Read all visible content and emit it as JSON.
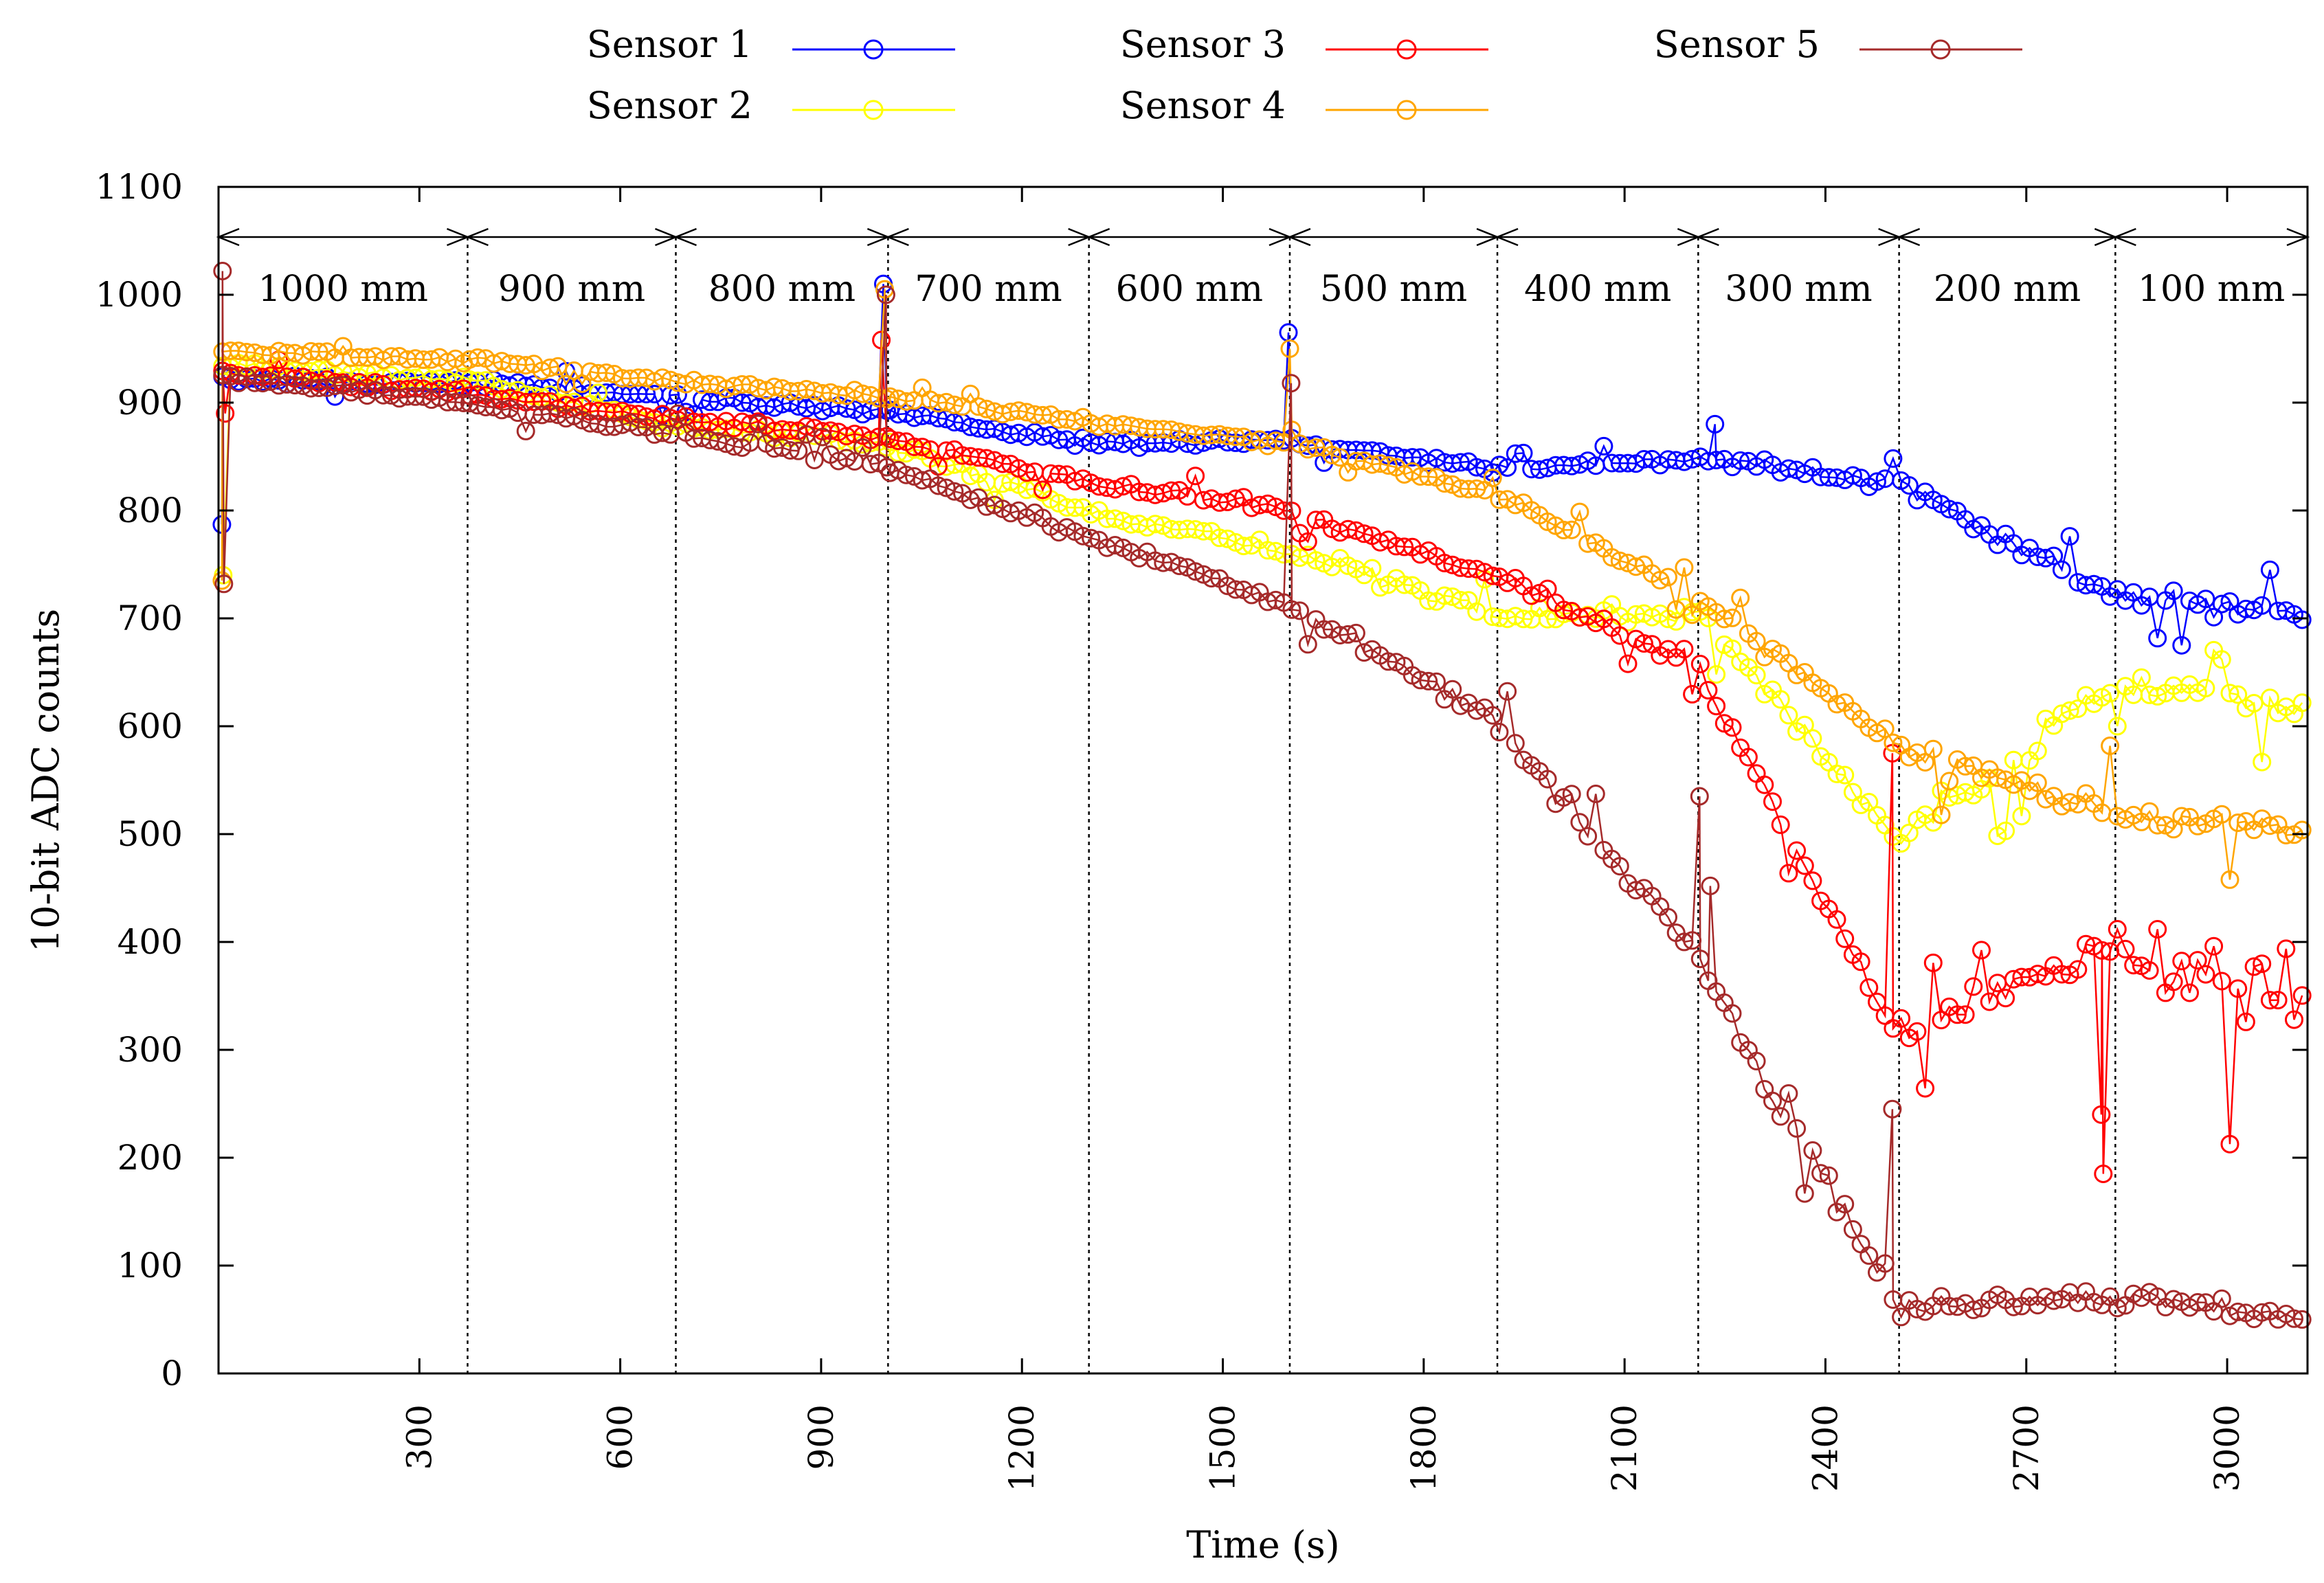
{
  "chart_data": {
    "type": "scatter",
    "title": "",
    "xlabel": "Time (s)",
    "ylabel": "10-bit ADC counts",
    "xlim": [
      0,
      3120
    ],
    "ylim": [
      0,
      1100
    ],
    "x_ticks": [
      "300",
      "600",
      "900",
      "1200",
      "1500",
      "1800",
      "2100",
      "2400",
      "2700",
      "3000"
    ],
    "y_ticks": [
      "0",
      "100",
      "200",
      "300",
      "400",
      "500",
      "600",
      "700",
      "800",
      "900",
      "1000",
      "1100"
    ],
    "segments": [
      {
        "label": "1000 mm",
        "start": 0,
        "end": 372
      },
      {
        "label": "900 mm",
        "start": 372,
        "end": 683
      },
      {
        "label": "800 mm",
        "start": 683,
        "end": 1000
      },
      {
        "label": "700 mm",
        "start": 1000,
        "end": 1300
      },
      {
        "label": "600 mm",
        "start": 1300,
        "end": 1600
      },
      {
        "label": "500 mm",
        "start": 1600,
        "end": 1910
      },
      {
        "label": "400 mm",
        "start": 1910,
        "end": 2210
      },
      {
        "label": "300 mm",
        "start": 2210,
        "end": 2510
      },
      {
        "label": "200 mm",
        "start": 2510,
        "end": 2833
      },
      {
        "label": "100 mm",
        "start": 2833,
        "end": 3120
      }
    ],
    "series": [
      {
        "name": "Sensor 1",
        "color": "#0000ff",
        "levels": [
          [
            0,
            922
          ],
          [
            372,
            918
          ],
          [
            683,
            905
          ],
          [
            1000,
            892
          ],
          [
            1300,
            862
          ],
          [
            1600,
            865
          ],
          [
            1910,
            838
          ],
          [
            2210,
            848
          ],
          [
            2510,
            825
          ],
          [
            2833,
            720
          ],
          [
            3120,
            703
          ]
        ],
        "noise": [
          6,
          6,
          6,
          6,
          6,
          6,
          6,
          10,
          12,
          15
        ]
      },
      {
        "name": "Sensor 2",
        "color": "#ffff00",
        "levels": [
          [
            0,
            935
          ],
          [
            372,
            920
          ],
          [
            683,
            878
          ],
          [
            1000,
            862
          ],
          [
            1300,
            800
          ],
          [
            1600,
            762
          ],
          [
            1910,
            702
          ],
          [
            2210,
            705
          ],
          [
            2510,
            495
          ],
          [
            2833,
            640
          ],
          [
            3120,
            615
          ]
        ],
        "noise": [
          6,
          6,
          7,
          8,
          10,
          12,
          13,
          13,
          25,
          18
        ]
      },
      {
        "name": "Sensor 3",
        "color": "#ff0000",
        "levels": [
          [
            0,
            928
          ],
          [
            372,
            908
          ],
          [
            683,
            885
          ],
          [
            1000,
            868
          ],
          [
            1300,
            826
          ],
          [
            1600,
            800
          ],
          [
            1910,
            738
          ],
          [
            2210,
            658
          ],
          [
            2510,
            310
          ],
          [
            2833,
            400
          ],
          [
            3120,
            350
          ]
        ],
        "noise": [
          6,
          6,
          6,
          6,
          7,
          8,
          12,
          15,
          25,
          60
        ]
      },
      {
        "name": "Sensor 4",
        "color": "#ffa500",
        "levels": [
          [
            0,
            948
          ],
          [
            372,
            940
          ],
          [
            683,
            920
          ],
          [
            1000,
            905
          ],
          [
            1300,
            882
          ],
          [
            1600,
            862
          ],
          [
            1910,
            815
          ],
          [
            2210,
            720
          ],
          [
            2510,
            580
          ],
          [
            2833,
            520
          ],
          [
            3120,
            500
          ]
        ],
        "noise": [
          5,
          5,
          5,
          5,
          5,
          6,
          8,
          12,
          20,
          20
        ]
      },
      {
        "name": "Sensor 5",
        "color": "#a52a2a",
        "levels": [
          [
            0,
            925
          ],
          [
            372,
            900
          ],
          [
            683,
            870
          ],
          [
            1000,
            840
          ],
          [
            1300,
            775
          ],
          [
            1600,
            712
          ],
          [
            1910,
            605
          ],
          [
            2210,
            385
          ],
          [
            2510,
            60
          ],
          [
            2833,
            70
          ],
          [
            3120,
            55
          ]
        ],
        "noise": [
          6,
          6,
          7,
          8,
          9,
          12,
          18,
          22,
          12,
          18
        ]
      }
    ],
    "spikes": [
      {
        "series": 0,
        "x": 5,
        "y": 787
      },
      {
        "series": 3,
        "x": 5,
        "y": 735
      },
      {
        "series": 4,
        "x": 6,
        "y": 1022
      },
      {
        "series": 4,
        "x": 8,
        "y": 732
      },
      {
        "series": 2,
        "x": 10,
        "y": 890
      },
      {
        "series": 1,
        "x": 7,
        "y": 740
      },
      {
        "series": 0,
        "x": 993,
        "y": 1010
      },
      {
        "series": 3,
        "x": 995,
        "y": 1005
      },
      {
        "series": 4,
        "x": 997,
        "y": 1000
      },
      {
        "series": 2,
        "x": 990,
        "y": 958
      },
      {
        "series": 0,
        "x": 1598,
        "y": 965
      },
      {
        "series": 3,
        "x": 1600,
        "y": 950
      },
      {
        "series": 4,
        "x": 1602,
        "y": 918
      },
      {
        "series": 0,
        "x": 2235,
        "y": 880
      },
      {
        "series": 4,
        "x": 2212,
        "y": 535
      },
      {
        "series": 4,
        "x": 2228,
        "y": 452
      },
      {
        "series": 2,
        "x": 2500,
        "y": 575
      },
      {
        "series": 4,
        "x": 2500,
        "y": 245
      },
      {
        "series": 2,
        "x": 2815,
        "y": 185
      },
      {
        "series": 2,
        "x": 2812,
        "y": 240
      }
    ],
    "legend": {
      "placement": "top",
      "entries": [
        "Sensor 1",
        "Sensor 2",
        "Sensor 3",
        "Sensor 4",
        "Sensor 5"
      ]
    }
  }
}
